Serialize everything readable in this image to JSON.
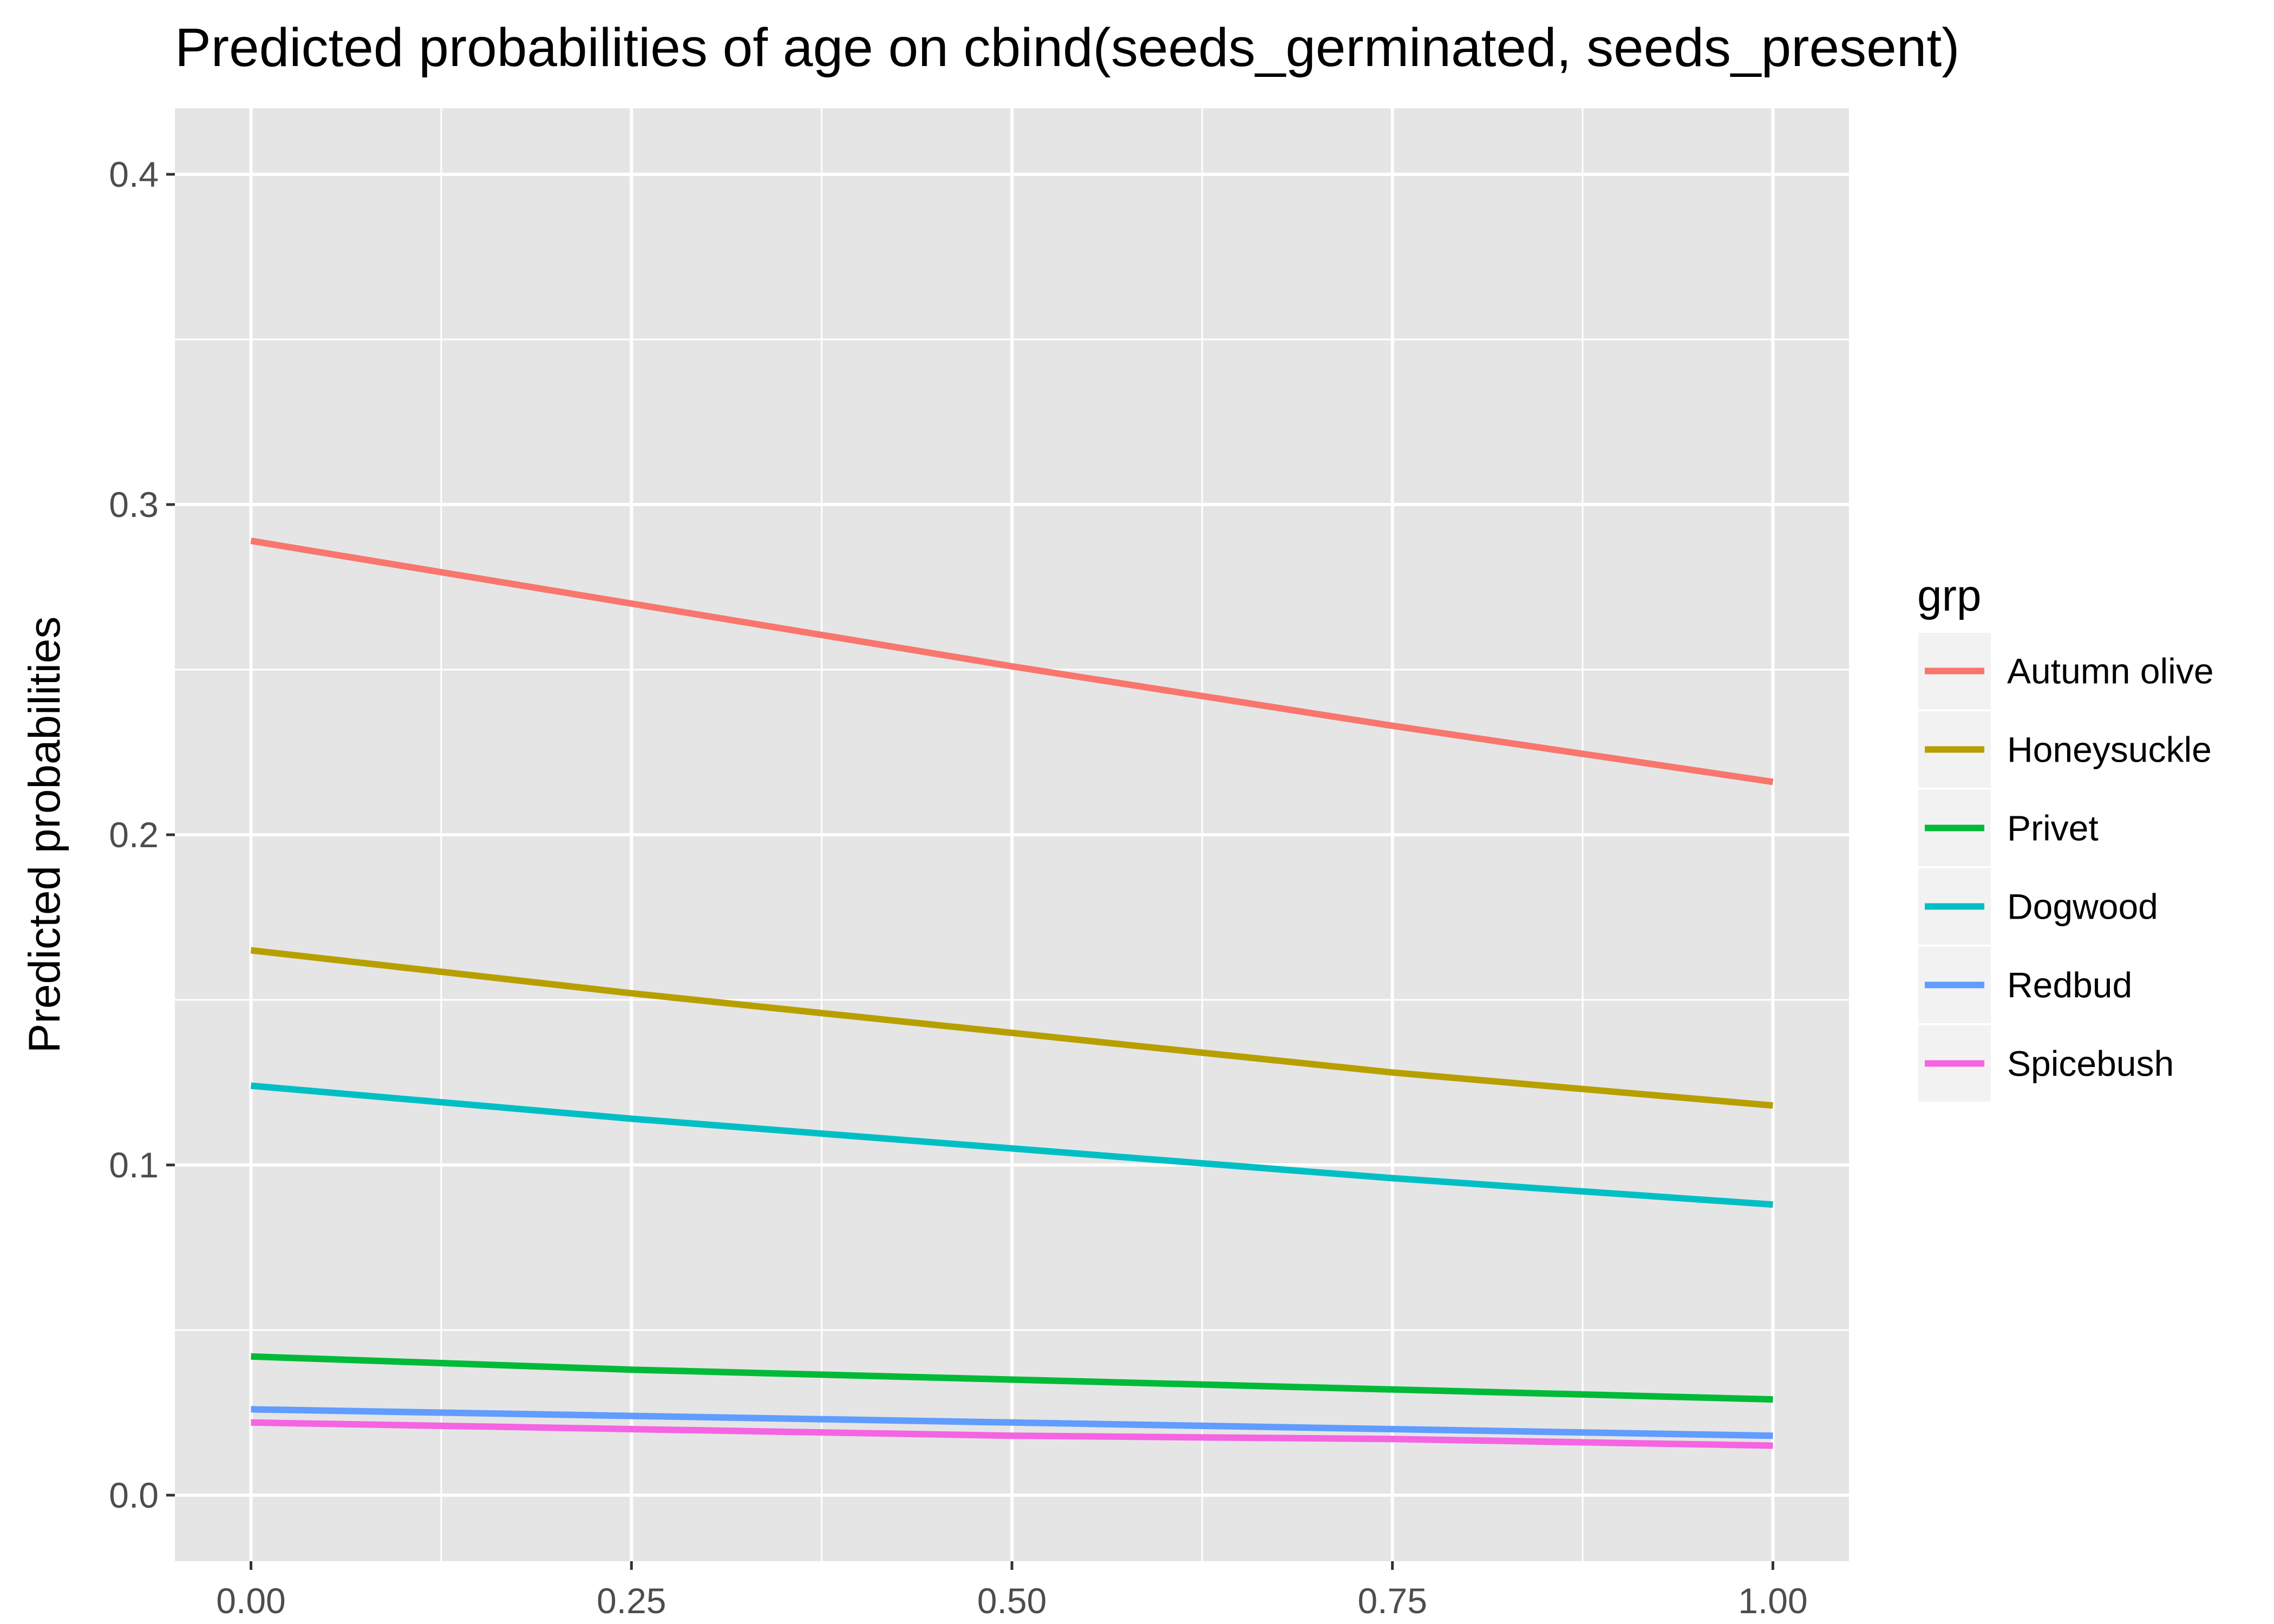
{
  "chart_data": {
    "type": "line",
    "title": "Predicted probabilities of age on cbind(seeds_germinated, seeds_present)",
    "xlabel": "",
    "ylabel": "Predicted probabilities",
    "xlim": [
      -0.05,
      1.05
    ],
    "ylim": [
      -0.02,
      0.42
    ],
    "xticks": [
      0,
      0.25,
      0.5,
      0.75,
      1
    ],
    "xtick_labels": [
      "0.00",
      "0.25",
      "0.50",
      "0.75",
      "1.00"
    ],
    "yticks": [
      0,
      0.1,
      0.2,
      0.3,
      0.4
    ],
    "ytick_labels": [
      "0.0",
      "0.1",
      "0.2",
      "0.3",
      "0.4"
    ],
    "grid": true,
    "legend_title": "grp",
    "legend_position": "right",
    "x": [
      0,
      0.25,
      0.5,
      0.75,
      1
    ],
    "series": [
      {
        "name": "Autumn olive",
        "color": "#F8766D",
        "values": [
          0.289,
          0.27,
          0.251,
          0.233,
          0.216
        ]
      },
      {
        "name": "Honeysuckle",
        "color": "#B79F00",
        "values": [
          0.165,
          0.152,
          0.14,
          0.128,
          0.118
        ]
      },
      {
        "name": "Privet",
        "color": "#00BA38",
        "values": [
          0.042,
          0.038,
          0.035,
          0.032,
          0.029
        ]
      },
      {
        "name": "Dogwood",
        "color": "#00BFC4",
        "values": [
          0.124,
          0.114,
          0.105,
          0.096,
          0.088
        ]
      },
      {
        "name": "Redbud",
        "color": "#619CFF",
        "values": [
          0.026,
          0.024,
          0.022,
          0.02,
          0.018
        ]
      },
      {
        "name": "Spicebush",
        "color": "#F564E3",
        "values": [
          0.022,
          0.02,
          0.018,
          0.017,
          0.015
        ]
      }
    ],
    "colors": {
      "panel": "#E5E5E5",
      "grid": "#FFFFFF",
      "legend_key": "#F2F2F2",
      "tick": "#333333"
    }
  }
}
